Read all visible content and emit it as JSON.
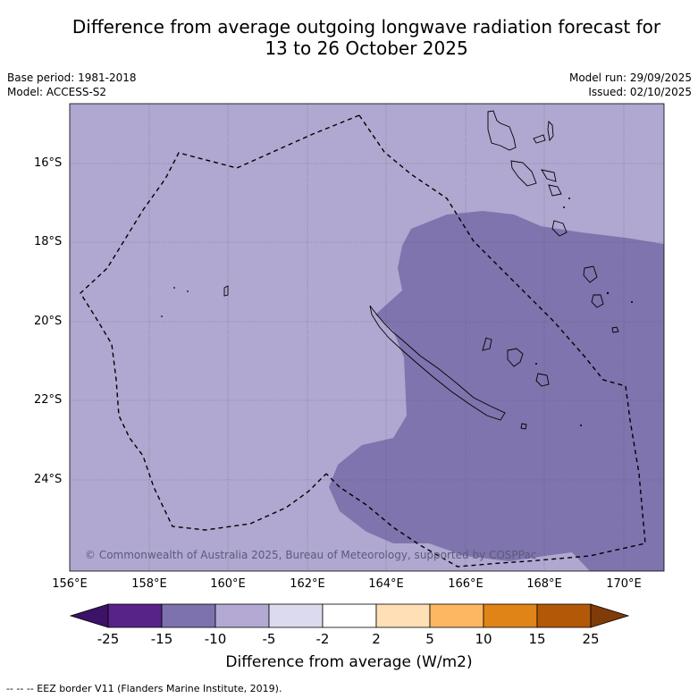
{
  "title": {
    "line1": "Difference from average outgoing longwave radiation forecast for",
    "line2": "13 to 26 October 2025"
  },
  "info": {
    "base_period": "Base period: 1981-2018",
    "model": "Model: ACCESS-S2",
    "model_run": "Model run: 29/09/2025",
    "issued": "Issued: 02/10/2025"
  },
  "map": {
    "y_ticks": [
      "16°S",
      "18°S",
      "20°S",
      "22°S",
      "24°S"
    ],
    "x_ticks": [
      "156°E",
      "158°E",
      "160°E",
      "162°E",
      "164°E",
      "166°E",
      "168°E",
      "170°E"
    ],
    "credit": "© Commonwealth of Australia 2025, Bureau of Meteorology, supported by COSPPac",
    "colors": {
      "background": "#b0a8d0",
      "anomaly_region": "#7f74ad",
      "grid": "#555566",
      "border": "#000000"
    }
  },
  "colorbar": {
    "title": "Difference from average (W/m2)",
    "labels": [
      "-25",
      "-15",
      "-10",
      "-5",
      "-2",
      "2",
      "5",
      "10",
      "15",
      "25"
    ],
    "colors": [
      "#3c1268",
      "#582389",
      "#7d72ad",
      "#b3a9d3",
      "#dcdaef",
      "#ffffff",
      "#fedfb6",
      "#fdb762",
      "#e08418",
      "#b35806",
      "#7f3b08"
    ]
  },
  "footer": "-- -- -- EEZ border V11 (Flanders Marine Institute, 2019)."
}
